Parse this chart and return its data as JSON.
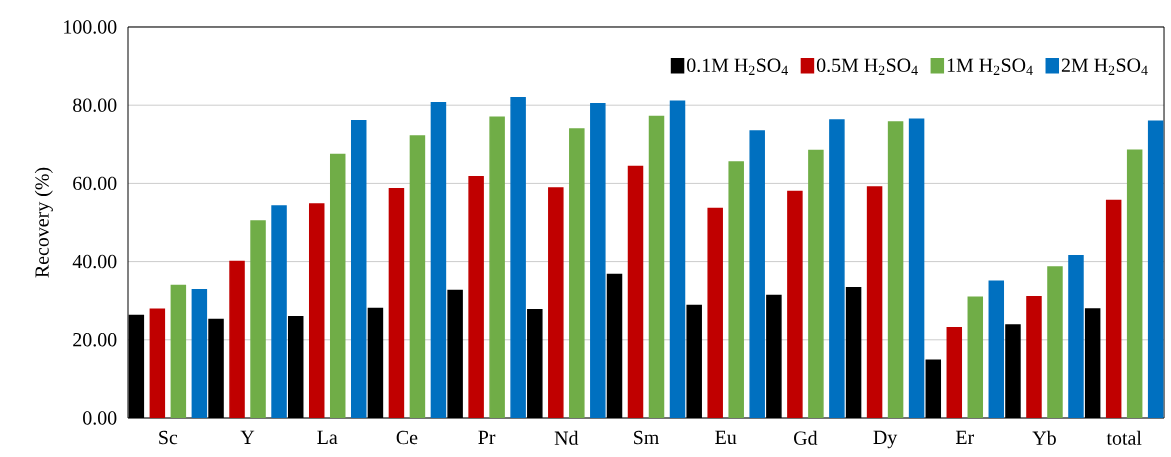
{
  "chart_data": {
    "type": "bar",
    "ylabel": "Recovery (%)",
    "categories": [
      "Sc",
      "Y",
      "La",
      "Ce",
      "Pr",
      "Nd",
      "Sm",
      "Eu",
      "Gd",
      "Dy",
      "Er",
      "Yb",
      "total"
    ],
    "series": [
      {
        "name": "0.1M H$_{2}$SO$_{4}$",
        "color": "#000000",
        "values": [
          26.2,
          25.2,
          25.9,
          28.0,
          32.6,
          27.7,
          36.7,
          28.8,
          31.3,
          33.3,
          14.8,
          23.8,
          27.9
        ]
      },
      {
        "name": "0.5M H$_{2}$SO$_{4}$",
        "color": "#c00000",
        "values": [
          27.8,
          40.0,
          54.7,
          58.6,
          61.7,
          58.8,
          64.3,
          53.6,
          57.9,
          59.1,
          23.1,
          31.0,
          55.6
        ]
      },
      {
        "name": "1M H$_{2}$SO$_{4}$",
        "color": "#70ad47",
        "values": [
          33.9,
          50.4,
          67.4,
          72.1,
          76.9,
          73.9,
          77.1,
          65.5,
          68.4,
          75.7,
          30.9,
          38.6,
          68.5
        ]
      },
      {
        "name": "2M H$_{2}$SO$_{4}$",
        "color": "#0070c0",
        "values": [
          32.8,
          54.2,
          76.0,
          80.6,
          81.9,
          80.4,
          81.0,
          73.4,
          76.2,
          76.4,
          35.0,
          41.5,
          75.9
        ]
      }
    ],
    "ylim": [
      0,
      100
    ],
    "yticks": [
      {
        "value": 0,
        "label": "0.00"
      },
      {
        "value": 20,
        "label": "20.00"
      },
      {
        "value": 40,
        "label": "40.00"
      },
      {
        "value": 60,
        "label": "60.00"
      },
      {
        "value": 80,
        "label": "80.00"
      },
      {
        "value": 100,
        "label": "100.00"
      }
    ],
    "grid": "y",
    "legend": "top right"
  }
}
